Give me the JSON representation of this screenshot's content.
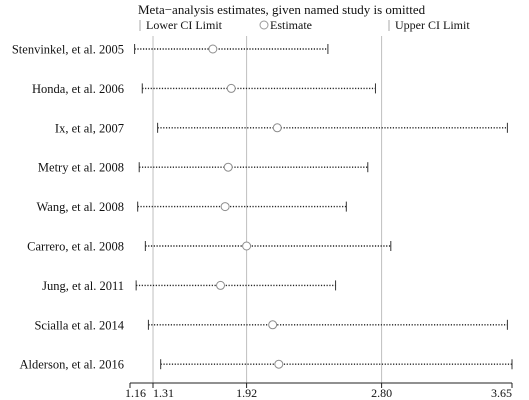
{
  "chart_data": {
    "type": "forest",
    "title": "Meta−analysis estimates, given named study is omitted",
    "legend": {
      "lower": "Lower CI Limit",
      "estimate": "Estimate",
      "upper": "Upper CI Limit"
    },
    "xticks": [
      {
        "value": 1.16,
        "label": "1.16"
      },
      {
        "value": 1.31,
        "label": "1.31"
      },
      {
        "value": 1.92,
        "label": "1.92"
      },
      {
        "value": 2.8,
        "label": "2.80"
      },
      {
        "value": 3.65,
        "label": "3.65"
      }
    ],
    "vlines": [
      1.31,
      1.92,
      2.8
    ],
    "xlim": [
      1.16,
      3.65
    ],
    "studies": [
      {
        "name": "Stenvinkel, et al. 2005",
        "lower": 1.19,
        "estimate": 1.7,
        "upper": 2.45
      },
      {
        "name": "Honda, et al. 2006",
        "lower": 1.24,
        "estimate": 1.82,
        "upper": 2.76
      },
      {
        "name": "Ix, et al, 2007",
        "lower": 1.34,
        "estimate": 2.12,
        "upper": 3.62
      },
      {
        "name": "Metry et al. 2008",
        "lower": 1.22,
        "estimate": 1.8,
        "upper": 2.71
      },
      {
        "name": "Wang, et al. 2008",
        "lower": 1.21,
        "estimate": 1.78,
        "upper": 2.57
      },
      {
        "name": "Carrero, et al. 2008",
        "lower": 1.26,
        "estimate": 1.92,
        "upper": 2.86
      },
      {
        "name": "Jung, et al. 2011",
        "lower": 1.2,
        "estimate": 1.75,
        "upper": 2.5
      },
      {
        "name": "Scialla et al. 2014",
        "lower": 1.28,
        "estimate": 2.09,
        "upper": 3.62
      },
      {
        "name": "Alderson, et al. 2016",
        "lower": 1.36,
        "estimate": 2.13,
        "upper": 3.65
      }
    ]
  }
}
